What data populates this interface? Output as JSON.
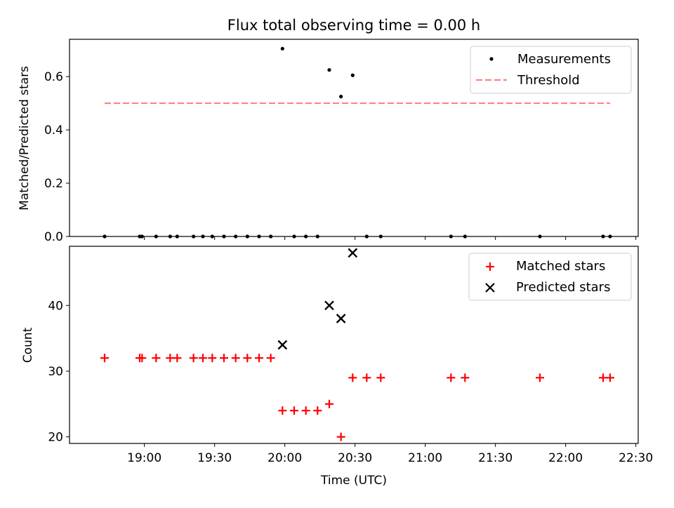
{
  "title": "Flux total observing time = 0.00 h",
  "colors": {
    "measurement": "#000000",
    "threshold": "#ff7b7b",
    "matched": "#ff0000",
    "predicted": "#000000"
  },
  "chart_data": [
    {
      "type": "scatter",
      "title": "Flux total observing time = 0.00 h",
      "xlabel": "",
      "ylabel": "Matched/Predicted stars",
      "xlim": [
        "18:28",
        "22:31"
      ],
      "ylim": [
        0,
        0.74
      ],
      "yticks": [
        "0.0",
        "0.2",
        "0.4",
        "0.6"
      ],
      "legend_position": "top-right",
      "legend": [
        "Measurements",
        "Threshold"
      ],
      "series": [
        {
          "name": "Measurements",
          "marker": "dot",
          "points": [
            [
              "18:43",
              0
            ],
            [
              "18:58",
              0
            ],
            [
              "18:59",
              0
            ],
            [
              "19:05",
              0
            ],
            [
              "19:11",
              0
            ],
            [
              "19:14",
              0
            ],
            [
              "19:21",
              0
            ],
            [
              "19:25",
              0
            ],
            [
              "19:29",
              0
            ],
            [
              "19:34",
              0
            ],
            [
              "19:39",
              0
            ],
            [
              "19:44",
              0
            ],
            [
              "19:49",
              0
            ],
            [
              "19:54",
              0
            ],
            [
              "19:59",
              0.705
            ],
            [
              "20:04",
              0
            ],
            [
              "20:09",
              0
            ],
            [
              "20:14",
              0
            ],
            [
              "20:19",
              0.625
            ],
            [
              "20:24",
              0.525
            ],
            [
              "20:29",
              0.605
            ],
            [
              "20:35",
              0
            ],
            [
              "20:41",
              0
            ],
            [
              "21:11",
              0
            ],
            [
              "21:17",
              0
            ],
            [
              "21:49",
              0
            ],
            [
              "22:16",
              0
            ],
            [
              "22:19",
              0
            ]
          ]
        },
        {
          "name": "Threshold",
          "style": "dashed",
          "points": [
            [
              "18:43",
              0.5
            ],
            [
              "22:19",
              0.5
            ]
          ]
        }
      ]
    },
    {
      "type": "scatter",
      "title": "",
      "xlabel": "Time (UTC)",
      "ylabel": "Count",
      "xlim": [
        "18:28",
        "22:31"
      ],
      "ylim": [
        19,
        49
      ],
      "yticks": [
        "20",
        "30",
        "40"
      ],
      "xticks": [
        "19:00",
        "19:30",
        "20:00",
        "20:30",
        "21:00",
        "21:30",
        "22:00",
        "22:30"
      ],
      "legend_position": "top-right",
      "legend": [
        "Matched stars",
        "Predicted stars"
      ],
      "series": [
        {
          "name": "Matched stars",
          "marker": "plus",
          "points": [
            [
              "18:43",
              32
            ],
            [
              "18:58",
              32
            ],
            [
              "18:59",
              32
            ],
            [
              "19:05",
              32
            ],
            [
              "19:11",
              32
            ],
            [
              "19:14",
              32
            ],
            [
              "19:21",
              32
            ],
            [
              "19:25",
              32
            ],
            [
              "19:29",
              32
            ],
            [
              "19:34",
              32
            ],
            [
              "19:39",
              32
            ],
            [
              "19:44",
              32
            ],
            [
              "19:49",
              32
            ],
            [
              "19:54",
              32
            ],
            [
              "19:59",
              24
            ],
            [
              "20:04",
              24
            ],
            [
              "20:09",
              24
            ],
            [
              "20:14",
              24
            ],
            [
              "20:19",
              25
            ],
            [
              "20:24",
              20
            ],
            [
              "20:29",
              29
            ],
            [
              "20:35",
              29
            ],
            [
              "20:41",
              29
            ],
            [
              "21:11",
              29
            ],
            [
              "21:17",
              29
            ],
            [
              "21:49",
              29
            ],
            [
              "22:16",
              29
            ],
            [
              "22:19",
              29
            ]
          ]
        },
        {
          "name": "Predicted stars",
          "marker": "x",
          "points": [
            [
              "19:59",
              34
            ],
            [
              "20:19",
              40
            ],
            [
              "20:24",
              38
            ],
            [
              "20:29",
              48
            ]
          ]
        }
      ]
    }
  ]
}
